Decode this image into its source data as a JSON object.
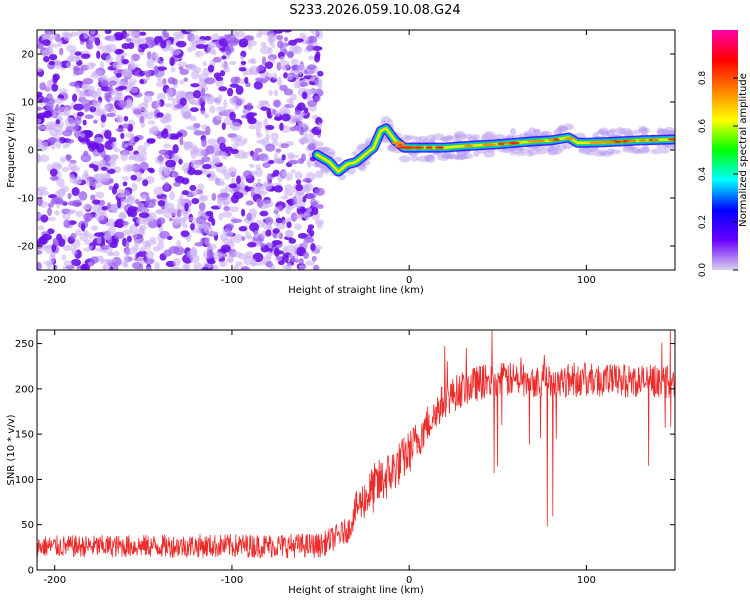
{
  "title": "S233.2026.059.10.08.G24",
  "chart_data": [
    {
      "type": "heatmap",
      "name": "spectrogram",
      "xlabel": "Height of straight line (km)",
      "ylabel": "Frequency (Hz)",
      "xlim": [
        -210,
        150
      ],
      "ylim": [
        -25,
        25
      ],
      "xticks": [
        -200,
        -100,
        0,
        100
      ],
      "yticks": [
        -20,
        -10,
        0,
        10,
        20
      ],
      "noise_region_x": [
        -210,
        -50
      ],
      "ridge": {
        "x": [
          -52,
          -45,
          -40,
          -35,
          -30,
          -25,
          -20,
          -16,
          -13,
          -8,
          -3,
          0,
          10,
          20,
          30,
          40,
          50,
          60,
          70,
          80,
          90,
          95,
          100,
          110,
          120,
          130,
          140,
          150
        ],
        "freq": [
          -1,
          -2.5,
          -4.5,
          -3,
          -2.5,
          -1,
          0.5,
          4,
          4.5,
          2,
          0.5,
          0.5,
          0.5,
          0.5,
          0.8,
          1.0,
          1.2,
          1.5,
          1.8,
          2.0,
          2.6,
          1.5,
          1.5,
          1.6,
          1.8,
          2.0,
          2.1,
          2.2
        ]
      },
      "colorbar": {
        "label": "Normalized spectral amplitude",
        "ticks": [
          "0.0",
          "0.2",
          "0.4",
          "0.6",
          "0.8"
        ],
        "range": [
          0,
          1
        ],
        "stops": [
          "#d8d0ee",
          "#6a00ff",
          "#0000ff",
          "#00ffff",
          "#00ff00",
          "#ffff00",
          "#ff8000",
          "#ff0000",
          "#ff00aa"
        ]
      }
    },
    {
      "type": "line",
      "name": "snr",
      "xlabel": "Height of straight line (km)",
      "ylabel": "SNR (10 * v/v)",
      "xlim": [
        -210,
        150
      ],
      "ylim": [
        0,
        265
      ],
      "xticks": [
        -200,
        -100,
        0,
        100
      ],
      "yticks": [
        0,
        50,
        100,
        150,
        200,
        250
      ],
      "color": "#ee2b2b",
      "trend": {
        "x": [
          -210,
          -50,
          -40,
          -34,
          -30,
          -20,
          -10,
          0,
          10,
          20,
          30,
          40,
          50,
          100,
          150
        ],
        "snr": [
          26,
          27,
          38,
          45,
          68,
          90,
          108,
          130,
          160,
          188,
          200,
          207,
          210,
          210,
          208
        ]
      },
      "noise_amplitude": {
        "x": [
          -210,
          -34,
          -20,
          20,
          150
        ],
        "amp": [
          12,
          14,
          28,
          20,
          18
        ]
      }
    }
  ]
}
